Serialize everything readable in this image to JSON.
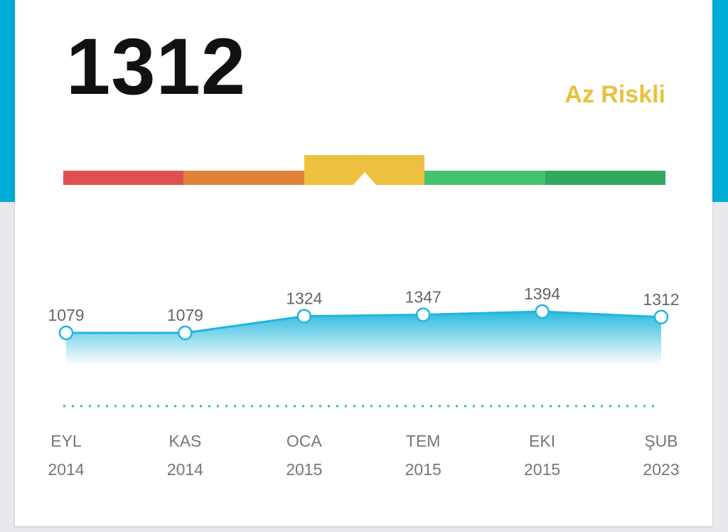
{
  "score": "1312",
  "risk_label": "Az Riskli",
  "colors": {
    "accent": "#00acd6",
    "risk_label": "#e8c23c",
    "line": "#1fb6dc",
    "dashed": "#2ab8c8"
  },
  "risk_scale": {
    "active_index": 2,
    "marker_position": 0.5,
    "segments": [
      {
        "color": "#e05050"
      },
      {
        "color": "#e0833a"
      },
      {
        "color": "#ecc13f"
      },
      {
        "color": "#44c470"
      },
      {
        "color": "#33a85f"
      }
    ]
  },
  "chart_data": {
    "type": "area",
    "x": [
      "EYL 2014",
      "KAS 2014",
      "OCA 2015",
      "TEM 2015",
      "EKI 2015",
      "ŞUB 2023"
    ],
    "x_month": [
      "EYL",
      "KAS",
      "OCA",
      "TEM",
      "EKI",
      "ŞUB"
    ],
    "x_year": [
      "2014",
      "2014",
      "2015",
      "2015",
      "2015",
      "2023"
    ],
    "values": [
      1079,
      1079,
      1324,
      1347,
      1394,
      1312
    ],
    "data_labels": [
      "1079",
      "1079",
      "1324",
      "1347",
      "1394",
      "1312"
    ],
    "grid": false,
    "title": "",
    "xlabel": "",
    "ylabel": ""
  }
}
